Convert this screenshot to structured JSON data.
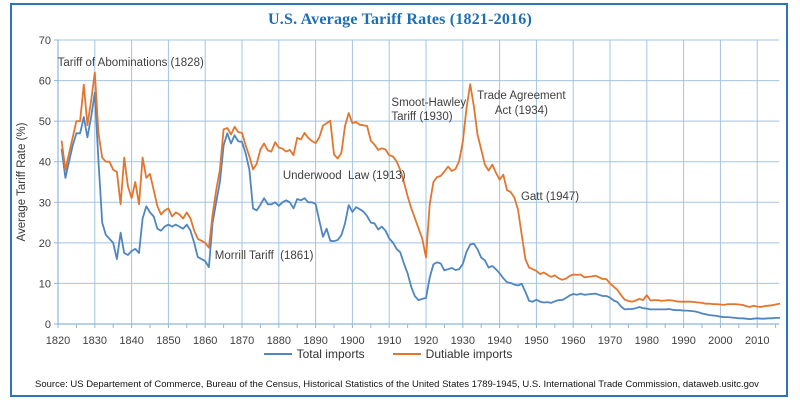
{
  "chart_data": {
    "type": "line",
    "title": "U.S. Average Tariff Rates (1821-2016)",
    "xlabel": "",
    "ylabel": "Average Tariff Rate (%)",
    "xlim": [
      1820,
      2016
    ],
    "ylim": [
      0,
      70
    ],
    "x_ticks": [
      1820,
      1830,
      1840,
      1850,
      1860,
      1870,
      1880,
      1890,
      1900,
      1910,
      1920,
      1930,
      1940,
      1950,
      1960,
      1970,
      1980,
      1990,
      2000,
      2010
    ],
    "x_minor_tick_step": 5,
    "y_ticks": [
      0,
      10,
      20,
      30,
      40,
      50,
      60,
      70
    ],
    "grid": true,
    "legend_position": "bottom",
    "series": [
      {
        "name": "Total imports",
        "color": "#4f86c0",
        "start_year": 1821,
        "values": [
          43,
          36,
          40,
          44,
          47,
          47,
          51,
          46,
          51,
          57,
          40,
          25,
          22,
          21,
          20,
          16,
          22.5,
          17.5,
          17,
          18,
          18.5,
          17.5,
          26,
          29,
          27.5,
          26.5,
          23.5,
          23,
          24,
          24.5,
          24,
          24.5,
          24,
          23.5,
          24.5,
          23,
          20,
          16.5,
          16,
          15.5,
          14,
          25,
          30,
          35,
          44,
          47,
          44.5,
          46.5,
          45,
          44.9,
          42,
          38,
          28.5,
          28,
          29.4,
          31,
          29.5,
          29.5,
          30,
          29.1,
          30,
          30.5,
          30,
          28.5,
          30.8,
          30.5,
          31,
          30,
          30,
          29.6,
          25.5,
          21.5,
          23.5,
          20.5,
          20.4,
          20.7,
          21.9,
          24.8,
          29.3,
          27.6,
          28.8,
          28.3,
          27.7,
          26.6,
          25,
          24.8,
          23.3,
          24,
          23,
          21.1,
          20.1,
          18.5,
          17.7,
          14.9,
          12.5,
          9.1,
          6.8,
          5.9,
          6.2,
          6.4,
          11.4,
          14.7,
          15.2,
          14.9,
          13.2,
          13.5,
          13.8,
          13.3,
          13.5,
          14.8,
          17.8,
          19.6,
          19.8,
          18.4,
          16.4,
          15.7,
          13.9,
          14.3,
          13.5,
          12.5,
          11.3,
          10.3,
          10.1,
          9.7,
          9.5,
          9.9,
          7.9,
          5.7,
          5.5,
          6,
          5.5,
          5.3,
          5.4,
          5.2,
          5.6,
          5.9,
          5.9,
          6.4,
          7,
          7.4,
          7.2,
          7.5,
          7.2,
          7.3,
          7.4,
          7.5,
          7.2,
          6.9,
          6.9,
          6.5,
          5.8,
          5.4,
          4.3,
          3.6,
          3.7,
          3.7,
          3.9,
          4.2,
          3.9,
          3.8,
          3.6,
          3.6,
          3.6,
          3.6,
          3.6,
          3.7,
          3.5,
          3.4,
          3.4,
          3.3,
          3.3,
          3.2,
          3.1,
          2.9,
          2.6,
          2.4,
          2.2,
          2.1,
          2,
          1.8,
          1.7,
          1.7,
          1.6,
          1.5,
          1.4,
          1.4,
          1.3,
          1.2,
          1.3,
          1.4,
          1.3,
          1.3,
          1.4,
          1.4,
          1.5,
          1.5
        ]
      },
      {
        "name": "Dutiable imports",
        "color": "#e2762f",
        "start_year": 1821,
        "values": [
          45,
          38,
          42,
          46,
          50,
          50,
          59,
          49,
          55,
          62,
          47,
          41,
          40,
          40,
          38,
          37.5,
          29.5,
          41,
          34,
          31,
          35,
          29.5,
          41,
          36,
          37,
          33,
          29,
          27,
          28,
          28.5,
          26.5,
          27.5,
          27,
          26,
          27.5,
          26,
          23,
          21,
          20.5,
          20,
          18.8,
          27,
          33,
          38,
          48,
          48.3,
          46.7,
          48.6,
          47.3,
          47.1,
          44,
          41.3,
          38.1,
          39.5,
          43,
          44.5,
          42.8,
          42.5,
          44.8,
          43.5,
          43.2,
          42.5,
          42.9,
          41.6,
          45.9,
          45.5,
          47.1,
          45.9,
          45.1,
          44.6,
          46,
          48.9,
          49.5,
          50.1,
          41.8,
          40.8,
          42.2,
          48.8,
          52,
          49.5,
          49.8,
          49.1,
          49,
          48.8,
          45.2,
          44.2,
          42.9,
          43.3,
          43,
          41.6,
          41.3,
          40.1,
          38,
          35,
          31.5,
          28.5,
          26,
          23.5,
          21,
          16.4,
          29.5,
          35,
          36.2,
          36.5,
          37.6,
          38.8,
          37.7,
          38.2,
          40.1,
          44.9,
          53.2,
          59.1,
          53.6,
          46.7,
          43,
          39.3,
          37.8,
          39.3,
          37.3,
          35.6,
          36.8,
          33,
          32.5,
          31.2,
          28.2,
          22,
          16,
          13.9,
          13.5,
          13.1,
          12.3,
          12.7,
          12.1,
          11.6,
          12,
          11.3,
          10.9,
          11.2,
          11.8,
          12.2,
          12.1,
          12.2,
          11.5,
          11.6,
          11.7,
          11.9,
          11.5,
          11.1,
          11.1,
          10,
          9.2,
          8.4,
          7.1,
          6,
          5.7,
          5.5,
          5.8,
          6.2,
          5.9,
          7.1,
          5.8,
          5.9,
          5.9,
          5.7,
          5.8,
          5.9,
          5.8,
          5.6,
          5.5,
          5.5,
          5.5,
          5.5,
          5.4,
          5.3,
          5.2,
          5,
          5,
          4.9,
          4.9,
          4.8,
          4.7,
          4.9,
          4.9,
          4.9,
          4.8,
          4.7,
          4.4,
          4.2,
          4.5,
          4.3,
          4.2,
          4.4,
          4.5,
          4.6,
          4.8,
          5
        ]
      }
    ],
    "annotations": [
      {
        "id": "tariff-of-abominations",
        "text": "Tariff of Abominations (1828)",
        "year": 1819.9,
        "value": 66,
        "align": "left"
      },
      {
        "id": "morrill-tariff",
        "text": "Morrill Tariff  (1861)",
        "year": 1862.6,
        "value": 18.5,
        "align": "left"
      },
      {
        "id": "underwood-law",
        "text": "Underwood  Law (1913)",
        "year": 1881.1,
        "value": 38.3,
        "align": "left"
      },
      {
        "id": "smoot-hawley",
        "text": "Smoot-Hawley\nTariff (1930)",
        "year": 1910.6,
        "value": 56.3,
        "align": "left"
      },
      {
        "id": "trade-agreement-act",
        "text": "Trade Agreement\nAct (1934)",
        "year": 1933.9,
        "value": 57.8,
        "align": "center"
      },
      {
        "id": "gatt",
        "text": "Gatt (1947)",
        "year": 1945.8,
        "value": 33,
        "align": "left"
      }
    ]
  },
  "source": "Source: US Departement of Commerce, Bureau of the Census, Historical Statistics of the United States 1789-1945, U.S. International Trade Commission, dataweb.usitc.gov",
  "colors": {
    "frame": "#2e75b6",
    "title": "#1c6fb5",
    "grid": "#a3c4e4",
    "axis": "#8fb6da",
    "tick_label": "#404040",
    "annotation_text": "#3f3f3f",
    "source_text": "#141414"
  }
}
